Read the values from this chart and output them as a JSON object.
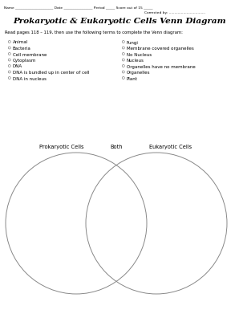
{
  "title": "Prokaryotic & Eukaryotic Cells Venn Diagram",
  "header_left": "Name _____________________ Date ________________ Period _____ Score out of 15 _____",
  "header_right": "Corrected by: .................................",
  "instruction": "Read pages 118 – 119, then use the following terms to complete the Venn diagram:",
  "terms_left": [
    "Animal",
    "Bacteria",
    "Cell membrane",
    "Cytoplasm",
    "DNA",
    "DNA is bundled up in center of cell",
    "DNA in nucleus"
  ],
  "terms_right": [
    "Fungi",
    "Membrane covered organelles",
    "No Nucleus",
    "Nucleus",
    "Organelles have no membrane",
    "Organelles",
    "Plant"
  ],
  "label_left": "Prokaryotic Cells",
  "label_center": "Both",
  "label_right": "Eukaryotic Cells",
  "background": "#ffffff",
  "circle_edge_color": "#888888",
  "text_color": "#000000",
  "title_fontsize": 7.5,
  "header_fontsize": 3.2,
  "instruction_fontsize": 3.8,
  "body_fontsize": 4.0,
  "label_fontsize": 4.8
}
